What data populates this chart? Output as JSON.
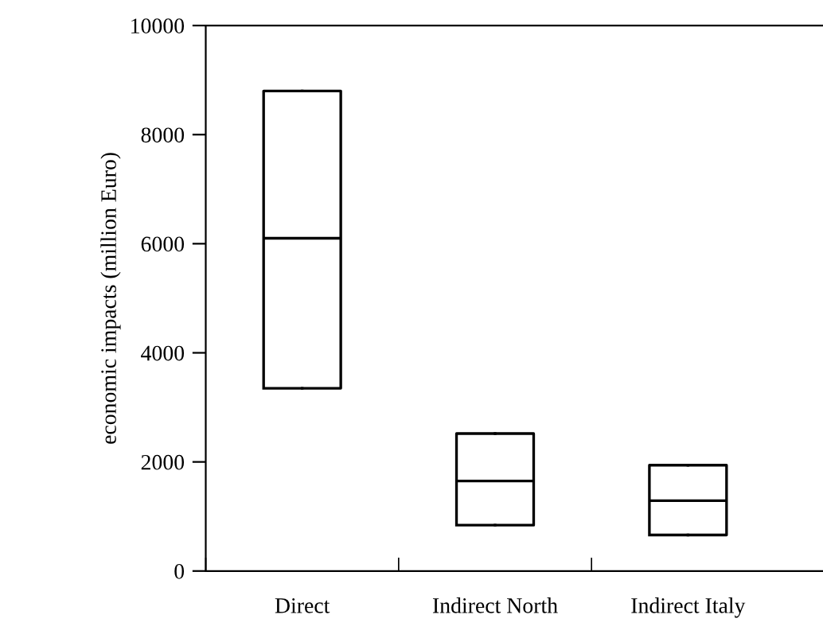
{
  "chart_data": {
    "type": "box",
    "ylabel": "economic impacts (million Euro)",
    "categories": [
      "Direct",
      "Indirect North",
      "Indirect Italy"
    ],
    "boxes": [
      {
        "low": 3350,
        "q1": 3350,
        "median": 6100,
        "q3": 8800,
        "high": 8800
      },
      {
        "low": 840,
        "q1": 840,
        "median": 1650,
        "q3": 2520,
        "high": 2520
      },
      {
        "low": 660,
        "q1": 660,
        "median": 1290,
        "q3": 1940,
        "high": 1940
      }
    ],
    "color": "#000000",
    "ylim": [
      0,
      10000
    ],
    "yticks": [
      0,
      2000,
      4000,
      6000,
      8000,
      10000
    ],
    "grid": false
  }
}
